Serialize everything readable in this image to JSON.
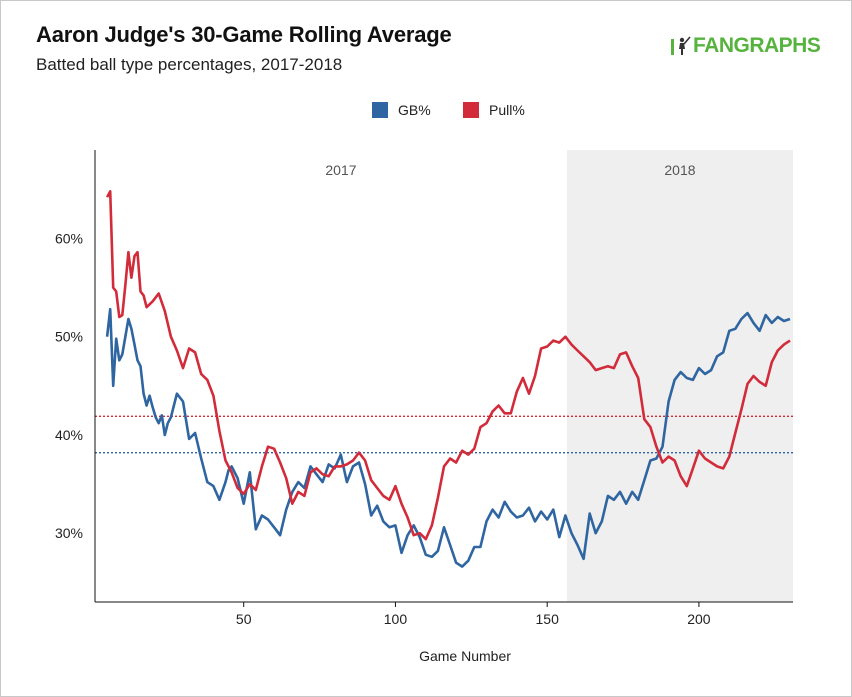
{
  "header": {
    "title": "Aaron Judge's 30-Game Rolling Average",
    "subtitle": "Batted ball type percentages, 2017-2018",
    "logo_text": "FANGRAPHS"
  },
  "colors": {
    "gb": "#2f65a0",
    "pull": "#d22b3a",
    "shade_2018": "#efefef",
    "logo": "#56b33d"
  },
  "chart_data": {
    "type": "line",
    "title": "Aaron Judge's 30-Game Rolling Average",
    "subtitle": "Batted ball type percentages, 2017-2018",
    "xlabel": "Game Number",
    "ylabel": "",
    "xlim": [
      1,
      231
    ],
    "ylim": [
      23,
      69
    ],
    "x_ticks": [
      50,
      100,
      150,
      200
    ],
    "y_ticks": [
      30,
      40,
      50,
      60
    ],
    "y_tick_format": "%",
    "legend_position": "top-center",
    "grid": false,
    "regions": [
      {
        "label": "2017",
        "x_start": 1,
        "x_end": 156.5,
        "shaded": false
      },
      {
        "label": "2018",
        "x_start": 156.5,
        "x_end": 231,
        "shaded": true
      }
    ],
    "reference_lines": [
      {
        "series": "GB%",
        "value": 38.2
      },
      {
        "series": "Pull%",
        "value": 41.9
      }
    ],
    "series": [
      {
        "name": "GB%",
        "color": "#2f65a0",
        "x": [
          5,
          6,
          7,
          8,
          9,
          10,
          12,
          13,
          14,
          15,
          16,
          17,
          18,
          19,
          20,
          21,
          22,
          23,
          24,
          25,
          26,
          27,
          28,
          30,
          32,
          34,
          36,
          38,
          40,
          42,
          44,
          45,
          46,
          48,
          50,
          52,
          54,
          56,
          58,
          60,
          62,
          64,
          66,
          68,
          70,
          72,
          74,
          76,
          78,
          80,
          82,
          84,
          86,
          88,
          90,
          92,
          94,
          96,
          98,
          100,
          102,
          104,
          106,
          108,
          110,
          112,
          114,
          116,
          118,
          120,
          122,
          124,
          126,
          128,
          130,
          132,
          134,
          136,
          138,
          140,
          142,
          144,
          146,
          148,
          150,
          152,
          154,
          156,
          158,
          160,
          162,
          164,
          166,
          168,
          170,
          172,
          174,
          176,
          178,
          180,
          182,
          184,
          186,
          188,
          190,
          192,
          194,
          196,
          198,
          200,
          202,
          204,
          206,
          208,
          210,
          212,
          214,
          216,
          218,
          220,
          222,
          224,
          226,
          228,
          230
        ],
        "values": [
          50.0,
          52.8,
          45.0,
          49.8,
          47.6,
          48.2,
          51.8,
          50.8,
          49.2,
          47.6,
          47.0,
          44.2,
          43.0,
          44.0,
          42.8,
          41.8,
          41.2,
          42.0,
          40.0,
          41.2,
          41.8,
          43.0,
          44.2,
          43.4,
          39.6,
          40.2,
          37.6,
          35.2,
          34.8,
          33.4,
          35.2,
          36.4,
          36.8,
          35.6,
          33.0,
          36.2,
          30.4,
          31.8,
          31.4,
          30.6,
          29.8,
          32.4,
          34.2,
          35.2,
          34.6,
          36.8,
          36.0,
          35.2,
          37.0,
          36.6,
          38.0,
          35.2,
          36.8,
          37.2,
          35.0,
          31.8,
          32.8,
          31.2,
          30.6,
          30.8,
          28.0,
          29.8,
          30.8,
          29.6,
          27.8,
          27.6,
          28.2,
          30.6,
          28.8,
          27.0,
          26.6,
          27.2,
          28.6,
          28.6,
          31.2,
          32.4,
          31.6,
          33.2,
          32.2,
          31.6,
          31.8,
          32.6,
          31.2,
          32.2,
          31.4,
          32.4,
          29.6,
          31.8,
          30.0,
          28.8,
          27.4,
          32.0,
          30.0,
          31.2,
          33.8,
          33.4,
          34.2,
          33.0,
          34.2,
          33.4,
          35.4,
          37.4,
          37.6,
          38.8,
          43.4,
          45.6,
          46.4,
          45.8,
          45.6,
          46.8,
          46.2,
          46.6,
          48.0,
          48.4,
          50.6,
          50.8,
          51.8,
          52.4,
          51.4,
          50.6,
          52.2,
          51.4,
          52.0,
          51.6,
          51.8
        ]
      },
      {
        "name": "Pull%",
        "color": "#d22b3a",
        "x": [
          5,
          6,
          7,
          8,
          9,
          10,
          11,
          12,
          13,
          14,
          15,
          16,
          17,
          18,
          20,
          22,
          24,
          26,
          28,
          30,
          32,
          34,
          36,
          38,
          40,
          42,
          44,
          46,
          48,
          50,
          52,
          54,
          56,
          58,
          60,
          62,
          64,
          66,
          68,
          70,
          72,
          74,
          76,
          78,
          80,
          82,
          84,
          86,
          88,
          90,
          92,
          94,
          96,
          98,
          100,
          102,
          104,
          106,
          108,
          110,
          112,
          114,
          116,
          118,
          120,
          122,
          124,
          126,
          128,
          130,
          132,
          134,
          136,
          138,
          140,
          142,
          144,
          146,
          148,
          150,
          152,
          154,
          156,
          158,
          160,
          162,
          164,
          166,
          168,
          170,
          172,
          174,
          176,
          178,
          180,
          182,
          184,
          186,
          188,
          190,
          192,
          194,
          196,
          198,
          200,
          202,
          204,
          206,
          208,
          210,
          212,
          214,
          216,
          218,
          220,
          222,
          224,
          226,
          228,
          230
        ],
        "values": [
          64.2,
          64.8,
          55.0,
          54.6,
          52.0,
          52.2,
          55.2,
          58.6,
          56.0,
          58.2,
          58.6,
          54.6,
          54.2,
          53.0,
          53.6,
          54.4,
          52.6,
          50.0,
          48.6,
          46.8,
          48.8,
          48.4,
          46.2,
          45.6,
          44.0,
          40.4,
          37.4,
          36.2,
          34.6,
          34.0,
          35.0,
          34.4,
          36.8,
          38.8,
          38.6,
          37.2,
          35.6,
          33.0,
          34.2,
          33.8,
          36.2,
          36.6,
          36.0,
          35.8,
          36.8,
          36.8,
          37.0,
          37.4,
          38.2,
          37.4,
          35.4,
          34.6,
          33.8,
          33.4,
          34.8,
          33.0,
          31.6,
          29.8,
          30.0,
          29.4,
          30.8,
          33.6,
          36.8,
          37.6,
          37.2,
          38.4,
          38.0,
          38.6,
          40.8,
          41.2,
          42.4,
          43.0,
          42.2,
          42.2,
          44.4,
          45.8,
          44.2,
          46.0,
          48.8,
          49.0,
          49.6,
          49.4,
          50.0,
          49.2,
          48.6,
          48.0,
          47.4,
          46.6,
          46.8,
          47.0,
          46.8,
          48.2,
          48.4,
          47.0,
          45.8,
          41.6,
          40.8,
          38.8,
          37.2,
          37.8,
          37.4,
          35.8,
          34.8,
          36.6,
          38.4,
          37.6,
          37.2,
          36.8,
          36.6,
          37.8,
          40.2,
          42.6,
          45.2,
          46.0,
          45.4,
          45.0,
          47.4,
          48.6,
          49.2,
          49.6
        ]
      }
    ]
  }
}
